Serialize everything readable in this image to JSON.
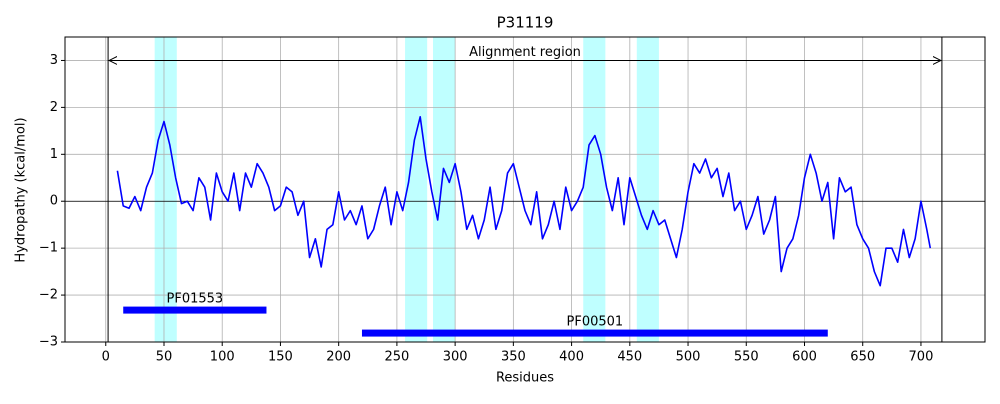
{
  "chart_data": {
    "type": "line",
    "title": "P31119",
    "xlabel": "Residues",
    "ylabel": "Hydropathy (kcal/mol)",
    "x": [
      10,
      15,
      20,
      25,
      30,
      35,
      40,
      45,
      50,
      55,
      60,
      65,
      70,
      75,
      80,
      85,
      90,
      95,
      100,
      105,
      110,
      115,
      120,
      125,
      130,
      135,
      140,
      145,
      150,
      155,
      160,
      165,
      170,
      175,
      180,
      185,
      190,
      195,
      200,
      205,
      210,
      215,
      220,
      225,
      230,
      235,
      240,
      245,
      250,
      255,
      260,
      265,
      270,
      275,
      280,
      285,
      290,
      295,
      300,
      305,
      310,
      315,
      320,
      325,
      330,
      335,
      340,
      345,
      350,
      355,
      360,
      365,
      370,
      375,
      380,
      385,
      390,
      395,
      400,
      405,
      410,
      415,
      420,
      425,
      430,
      435,
      440,
      445,
      450,
      455,
      460,
      465,
      470,
      475,
      480,
      485,
      490,
      495,
      500,
      505,
      510,
      515,
      520,
      525,
      530,
      535,
      540,
      545,
      550,
      555,
      560,
      565,
      570,
      575,
      580,
      585,
      590,
      595,
      600,
      605,
      610,
      615,
      620,
      625,
      630,
      635,
      640,
      645,
      650,
      655,
      660,
      665,
      670,
      675,
      680,
      685,
      690,
      695,
      700,
      705,
      708
    ],
    "values": [
      0.65,
      -0.1,
      -0.15,
      0.1,
      -0.2,
      0.3,
      0.6,
      1.3,
      1.7,
      1.2,
      0.5,
      -0.05,
      0.0,
      -0.2,
      0.5,
      0.3,
      -0.4,
      0.6,
      0.2,
      0.0,
      0.6,
      -0.2,
      0.6,
      0.3,
      0.8,
      0.6,
      0.3,
      -0.2,
      -0.1,
      0.3,
      0.2,
      -0.3,
      0.0,
      -1.2,
      -0.8,
      -1.4,
      -0.6,
      -0.5,
      0.2,
      -0.4,
      -0.2,
      -0.5,
      -0.1,
      -0.8,
      -0.6,
      -0.1,
      0.3,
      -0.5,
      0.2,
      -0.2,
      0.4,
      1.3,
      1.8,
      0.9,
      0.2,
      -0.4,
      0.7,
      0.4,
      0.8,
      0.2,
      -0.6,
      -0.3,
      -0.8,
      -0.4,
      0.3,
      -0.6,
      -0.2,
      0.6,
      0.8,
      0.3,
      -0.2,
      -0.5,
      0.2,
      -0.8,
      -0.5,
      0.0,
      -0.6,
      0.3,
      -0.2,
      0.0,
      0.3,
      1.2,
      1.4,
      1.0,
      0.3,
      -0.2,
      0.5,
      -0.5,
      0.5,
      0.1,
      -0.3,
      -0.6,
      -0.2,
      -0.5,
      -0.4,
      -0.8,
      -1.2,
      -0.6,
      0.2,
      0.8,
      0.6,
      0.9,
      0.5,
      0.7,
      0.1,
      0.6,
      -0.2,
      0.0,
      -0.6,
      -0.3,
      0.1,
      -0.7,
      -0.4,
      0.1,
      -1.5,
      -1.0,
      -0.8,
      -0.3,
      0.5,
      1.0,
      0.6,
      0.0,
      0.4,
      -0.8,
      0.5,
      0.2,
      0.3,
      -0.5,
      -0.8,
      -1.0,
      -1.5,
      -1.8,
      -1.0,
      -1.0,
      -1.3,
      -0.6,
      -1.2,
      -0.8,
      0.0,
      -0.6,
      -1.0
    ],
    "color": "#0000ff",
    "xlim": [
      -35,
      755
    ],
    "ylim": [
      -3,
      3.5
    ],
    "xticks": [
      0,
      50,
      100,
      150,
      200,
      250,
      300,
      350,
      400,
      450,
      500,
      550,
      600,
      650,
      700
    ],
    "yticks": [
      {
        "value": -3,
        "label": "−3"
      },
      {
        "value": -2,
        "label": "−2"
      },
      {
        "value": -1,
        "label": "−1"
      },
      0,
      1,
      2,
      3
    ],
    "grid": true,
    "alignment_region": {
      "label": "Alignment region",
      "start": 2,
      "end": 718,
      "y": 3
    },
    "highlights": [
      [
        42,
        61
      ],
      [
        257,
        276
      ],
      [
        281,
        300
      ],
      [
        410,
        429
      ],
      [
        456,
        475
      ]
    ],
    "highlight_color": "#00ffff",
    "domains": [
      {
        "name": "PF01553",
        "start": 15,
        "end": 138,
        "y": -2.32
      },
      {
        "name": "PF00501",
        "start": 220,
        "end": 620,
        "y": -2.81
      }
    ]
  }
}
